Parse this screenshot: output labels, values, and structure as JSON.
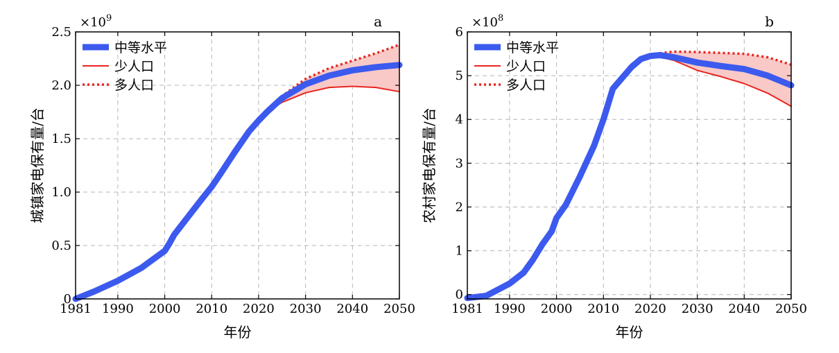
{
  "chart_data": [
    {
      "type": "line",
      "panel_label": "a",
      "multiplier": "×10",
      "multiplier_exp": "9",
      "xlabel": "年份",
      "ylabel": "城镇家电保有量/台",
      "xlim": [
        1981,
        2050
      ],
      "ylim": [
        0,
        2.5
      ],
      "xticks": [
        "1981",
        "1990",
        "2000",
        "2010",
        "2020",
        "2030",
        "2040",
        "2050"
      ],
      "yticks": [
        "0",
        "0.5",
        "1.0",
        "1.5",
        "2.0",
        "2.5"
      ],
      "grid": true,
      "legend_position": "top-left",
      "series": [
        {
          "name": "中等水平",
          "color": "#3c5aee",
          "style": "thick-solid",
          "x": [
            1981,
            1985,
            1990,
            1995,
            2000,
            2001,
            2002,
            2005,
            2008,
            2010,
            2012,
            2015,
            2018,
            2020,
            2022,
            2025,
            2030,
            2035,
            2040,
            2045,
            2050
          ],
          "y": [
            0.0,
            0.07,
            0.17,
            0.29,
            0.45,
            0.52,
            0.6,
            0.77,
            0.94,
            1.05,
            1.18,
            1.38,
            1.57,
            1.67,
            1.76,
            1.88,
            2.01,
            2.09,
            2.14,
            2.17,
            2.19
          ]
        },
        {
          "name": "少人口",
          "color": "#e8251f",
          "style": "solid",
          "x": [
            2022,
            2025,
            2030,
            2035,
            2040,
            2045,
            2050
          ],
          "y": [
            1.76,
            1.84,
            1.93,
            1.98,
            1.99,
            1.98,
            1.94
          ]
        },
        {
          "name": "多人口",
          "color": "#e8251f",
          "style": "dotted",
          "x": [
            2022,
            2025,
            2030,
            2035,
            2040,
            2045,
            2050
          ],
          "y": [
            1.76,
            1.9,
            2.06,
            2.16,
            2.23,
            2.3,
            2.38
          ]
        }
      ]
    },
    {
      "type": "line",
      "panel_label": "b",
      "multiplier": "×10",
      "multiplier_exp": "8",
      "xlabel": "年份",
      "ylabel": "农村家电保有量/台",
      "xlim": [
        1981,
        2050
      ],
      "ylim": [
        -0.1,
        6
      ],
      "xticks": [
        "1981",
        "1990",
        "2000",
        "2010",
        "2020",
        "2030",
        "2040",
        "2050"
      ],
      "yticks": [
        "0",
        "1",
        "2",
        "3",
        "4",
        "5",
        "6"
      ],
      "grid": true,
      "legend_position": "top-left",
      "series": [
        {
          "name": "中等水平",
          "color": "#3c5aee",
          "style": "thick-solid",
          "x": [
            1981,
            1985,
            1990,
            1993,
            1995,
            1997,
            1999,
            2000,
            2002,
            2005,
            2008,
            2010,
            2012,
            2014,
            2016,
            2018,
            2020,
            2022,
            2025,
            2030,
            2035,
            2040,
            2045,
            2050
          ],
          "y": [
            -0.08,
            -0.03,
            0.25,
            0.5,
            0.8,
            1.15,
            1.45,
            1.75,
            2.05,
            2.7,
            3.4,
            4.0,
            4.7,
            4.95,
            5.2,
            5.38,
            5.45,
            5.47,
            5.42,
            5.3,
            5.22,
            5.15,
            5.0,
            4.78
          ]
        },
        {
          "name": "少人口",
          "color": "#e8251f",
          "style": "solid",
          "x": [
            2021,
            2025,
            2030,
            2035,
            2040,
            2045,
            2050
          ],
          "y": [
            5.45,
            5.35,
            5.12,
            4.98,
            4.82,
            4.6,
            4.3
          ]
        },
        {
          "name": "多人口",
          "color": "#e8251f",
          "style": "dotted",
          "x": [
            2021,
            2025,
            2030,
            2035,
            2040,
            2045,
            2050
          ],
          "y": [
            5.5,
            5.55,
            5.54,
            5.52,
            5.5,
            5.42,
            5.25
          ]
        }
      ]
    }
  ]
}
